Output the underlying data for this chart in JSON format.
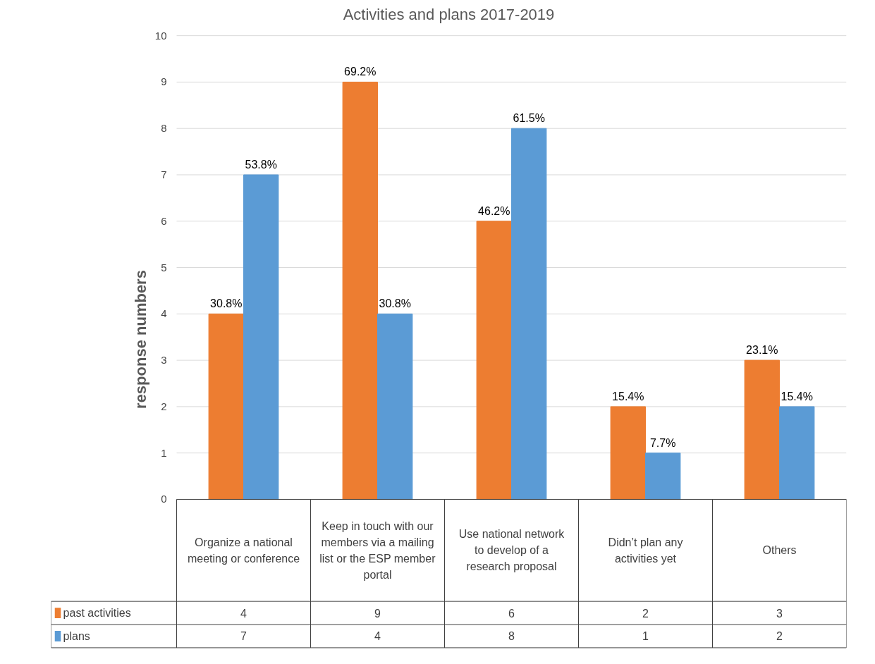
{
  "chart_data": {
    "type": "bar",
    "title": "Activities and plans 2017-2019",
    "ylabel": "response numbers",
    "categories": [
      "Organize a national meeting or conference",
      "Keep in touch with our members via a mailing list or the ESP member portal",
      "Use national network to develop of a research proposal",
      "Didn’t plan any activities yet",
      "Others"
    ],
    "series": [
      {
        "name": "past activities",
        "color": "#ed7d31",
        "values": [
          4,
          9,
          6,
          2,
          3
        ]
      },
      {
        "name": "plans",
        "color": "#5b9bd5",
        "values": [
          7,
          4,
          8,
          1,
          2
        ]
      }
    ],
    "annotations": [
      {
        "text": "30.8%",
        "x": "Organize a national meeting or conference",
        "y": 4
      },
      {
        "text": "69.2%",
        "x": "Keep in touch with our members via a mailing list or the ESP member portal",
        "y": 9
      },
      {
        "text": "46.2%",
        "x": "Use national network to develop of a research proposal",
        "y": 6
      },
      {
        "text": "15.4%",
        "x": "Didn’t plan any activities yet",
        "y": 2
      },
      {
        "text": "23.1%",
        "x": "Others",
        "y": 3
      },
      {
        "text": "53.8%",
        "x": "Organize a national meeting or conference",
        "y": 7
      },
      {
        "text": "30.8%",
        "x": "Keep in touch with our members via a mailing list or the ESP member portal",
        "y": 4
      },
      {
        "text": "61.5%",
        "x": "Use national network to develop of a research proposal",
        "y": 8
      },
      {
        "text": "7.7%",
        "x": "Didn’t plan any activities yet",
        "y": 1
      },
      {
        "text": "15.4%",
        "x": "Others",
        "y": 2
      }
    ],
    "ylim": [
      0,
      10
    ],
    "yticks": [
      0,
      1,
      2,
      3,
      4,
      5,
      6,
      7,
      8,
      9,
      10
    ],
    "grid": "y",
    "data_labels": true,
    "legend": "bottom"
  }
}
